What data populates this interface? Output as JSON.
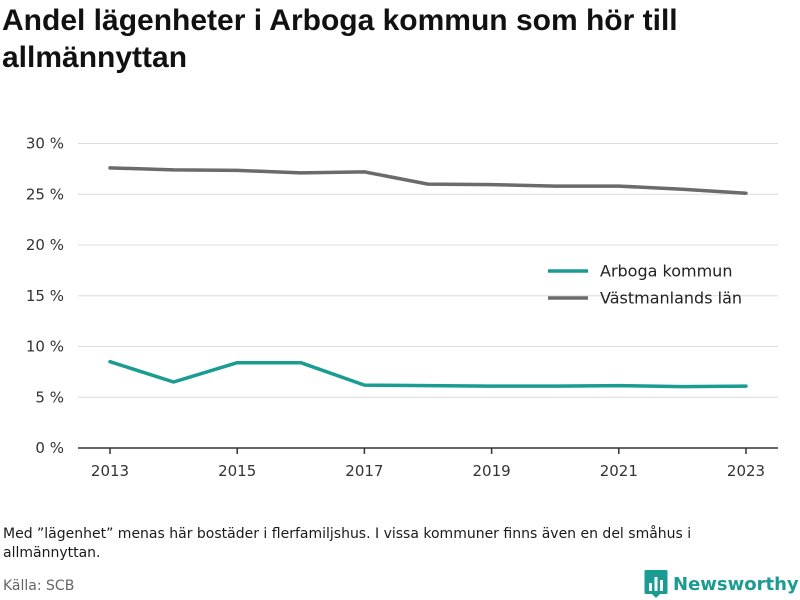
{
  "title": "Andel lägenheter i Arboga kommun som hör till allmännyttan",
  "note": "Med ”lägenhet” menas här bostäder i flerfamiljshus. I vissa kommuner finns även en del småhus i allmännyttan.",
  "source": "Källa: SCB",
  "brand": {
    "name": "Newsworthy",
    "icon": "bar-chart-logo-icon",
    "color": "#1a9c93"
  },
  "chart_data": {
    "type": "line",
    "x": [
      2013,
      2014,
      2015,
      2016,
      2017,
      2018,
      2019,
      2020,
      2021,
      2022,
      2023
    ],
    "x_ticks": [
      "2013",
      "2015",
      "2017",
      "2019",
      "2021",
      "2023"
    ],
    "y_ticks": [
      "0 %",
      "5 %",
      "10 %",
      "15 %",
      "20 %",
      "25 %",
      "30 %"
    ],
    "ylim": [
      0,
      30
    ],
    "grid": true,
    "legend_position": "right-middle",
    "series": [
      {
        "name": "Arboga kommun",
        "color": "#1a9c93",
        "values": [
          8.5,
          6.5,
          8.4,
          8.4,
          6.2,
          6.15,
          6.1,
          6.1,
          6.15,
          6.05,
          6.1
        ]
      },
      {
        "name": "Västmanlands län",
        "color": "#6b6b6b",
        "values": [
          27.6,
          27.4,
          27.35,
          27.1,
          27.2,
          26.0,
          25.95,
          25.8,
          25.8,
          25.5,
          25.1
        ]
      }
    ]
  }
}
